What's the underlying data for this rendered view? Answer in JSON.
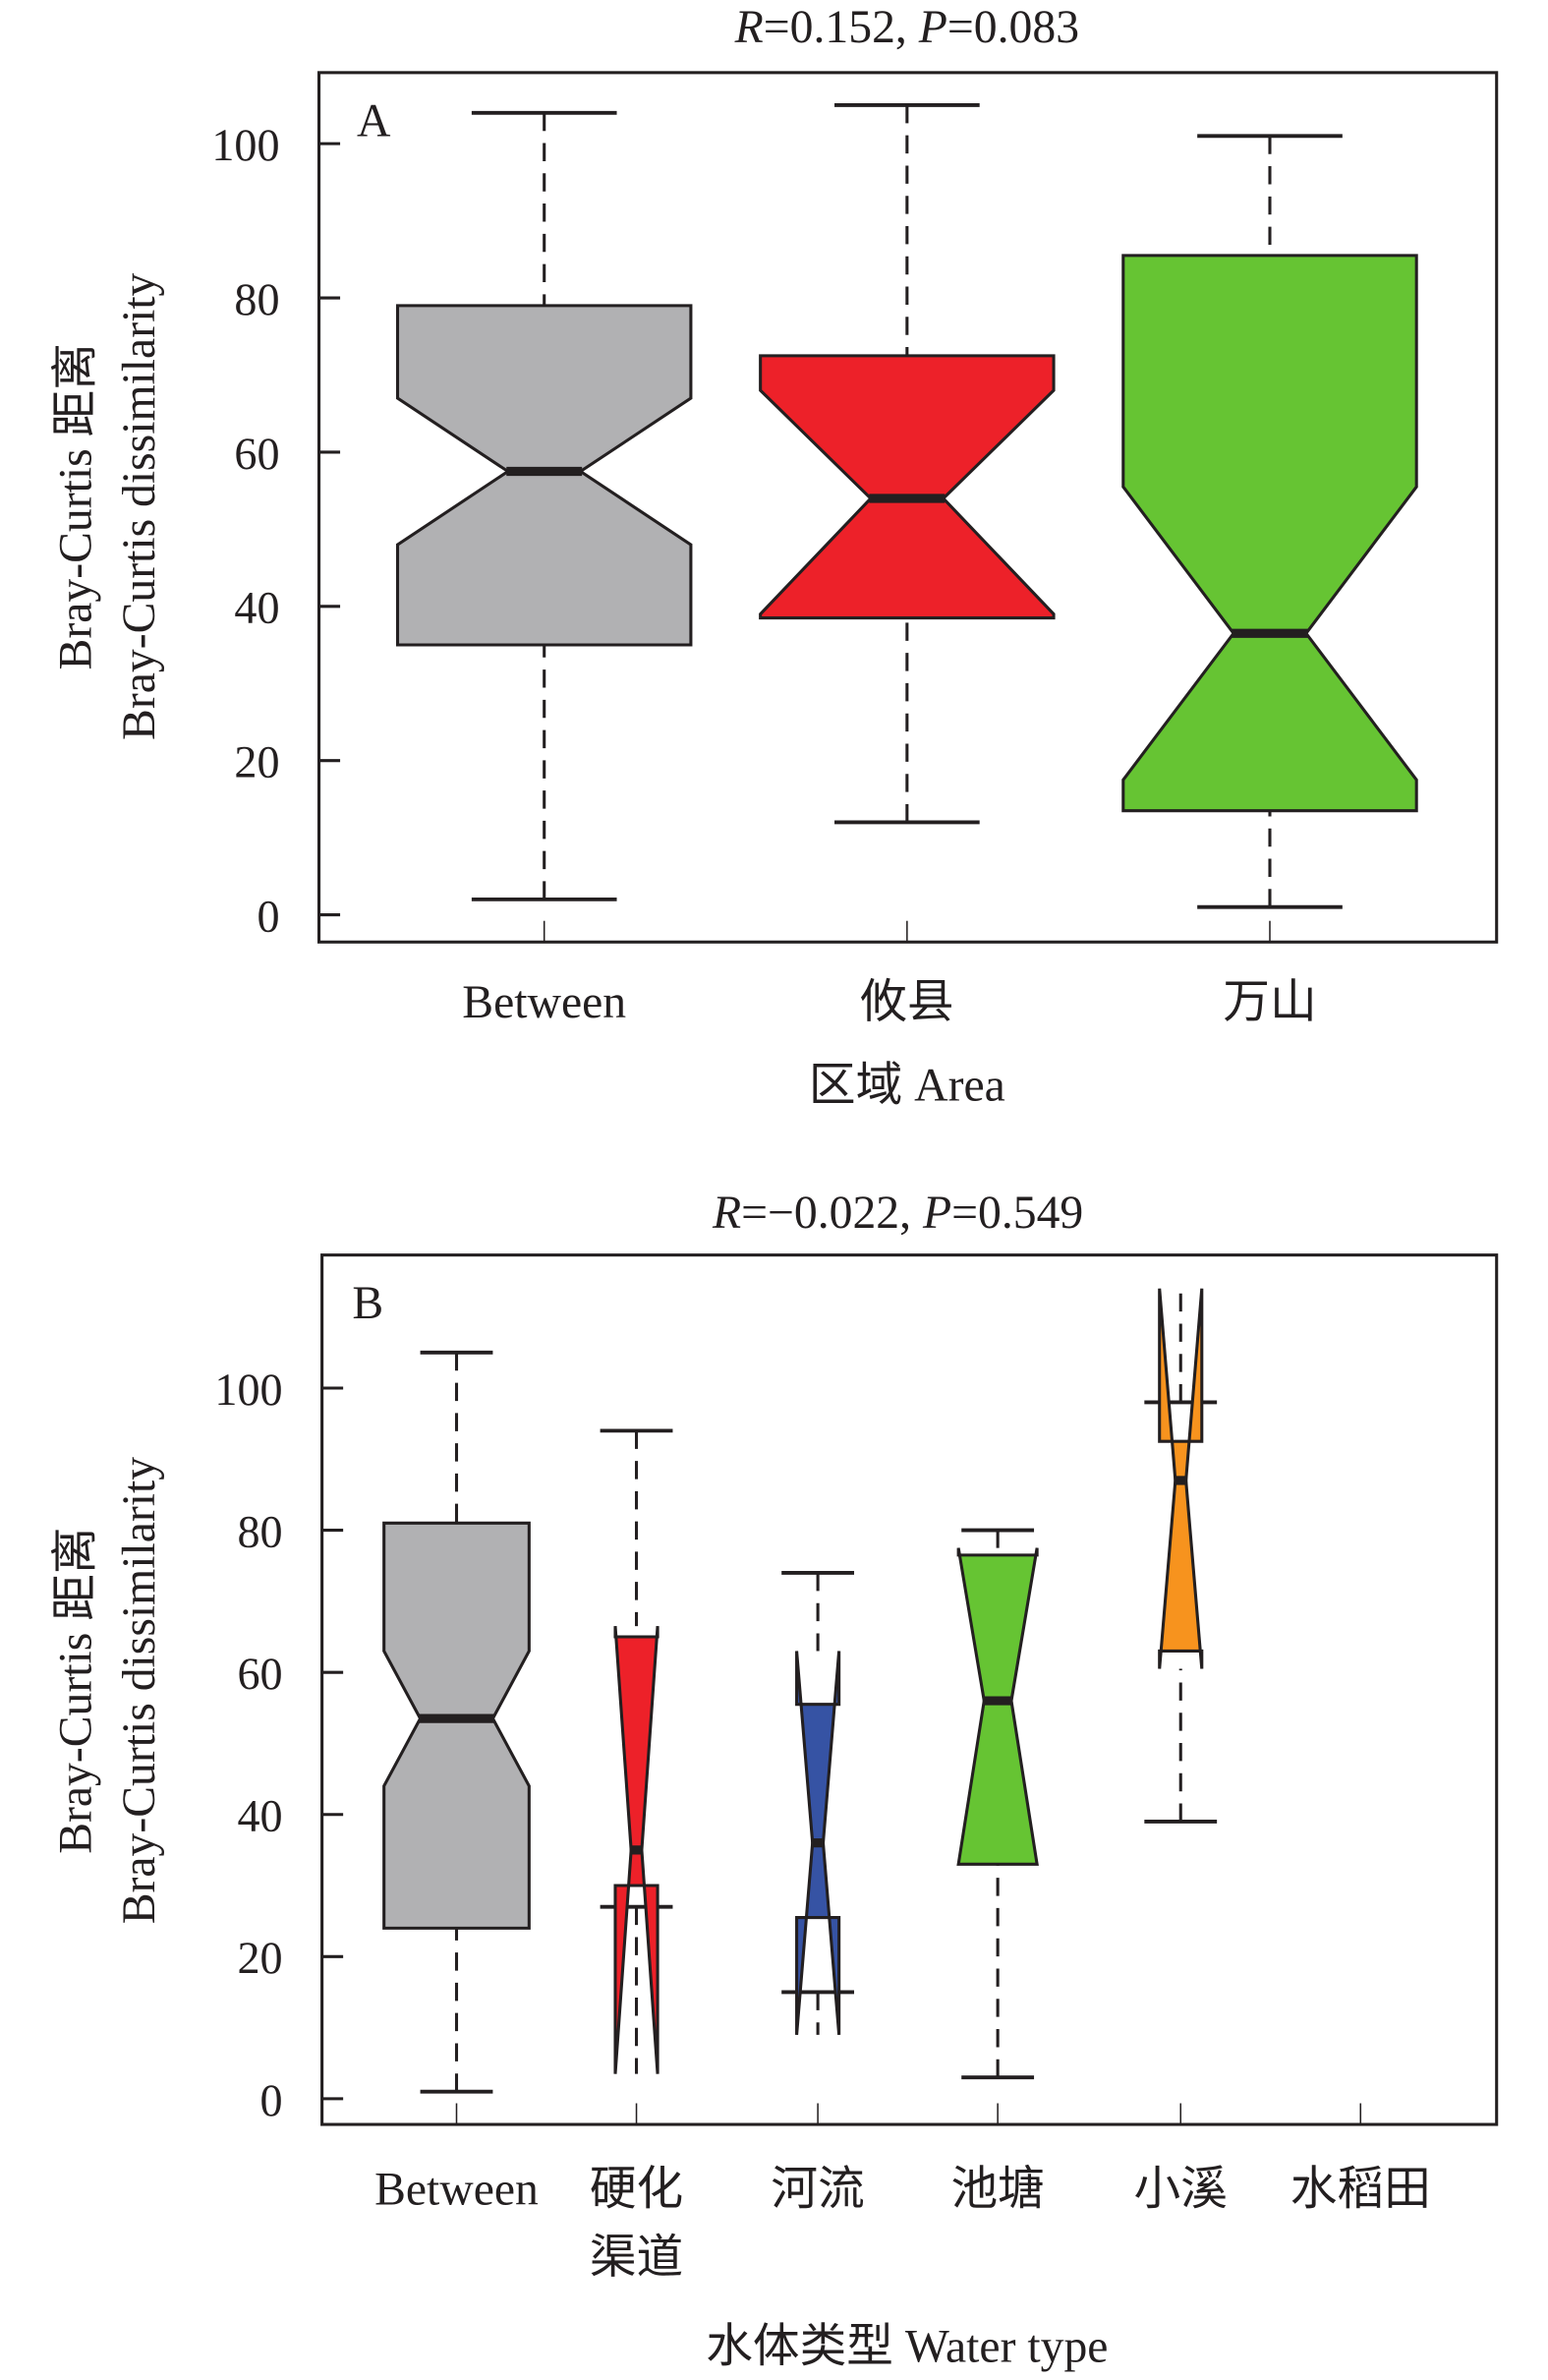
{
  "chart_data": [
    {
      "type": "boxplot",
      "panel_label": "A",
      "title_parts": [
        "R",
        "=0.152, ",
        "P",
        "=0.083"
      ],
      "xlabel": "区域 Area",
      "ylabel_lines": [
        "Bray-Curtis 距离",
        "Bray-Curtis dissimilarity"
      ],
      "ylim": [
        -3,
        108
      ],
      "yticks": [
        0,
        20,
        40,
        60,
        80,
        100
      ],
      "categories": [
        [
          "Between"
        ],
        [
          "攸县"
        ],
        [
          "万山"
        ]
      ],
      "boxes": [
        {
          "name": "Between",
          "color": "#b1b1b3",
          "whisker_low": 2,
          "q1": 35,
          "notch_low": 48,
          "median": 57.5,
          "notch_high": 67,
          "q3": 79,
          "whisker_high": 104
        },
        {
          "name": "攸县",
          "color": "#ed2129",
          "whisker_low": 12,
          "q1": 38.5,
          "notch_low": 39,
          "median": 54,
          "notch_high": 68,
          "q3": 72.5,
          "whisker_high": 105
        },
        {
          "name": "万山",
          "color": "#66c433",
          "whisker_low": 1,
          "q1": 13.5,
          "notch_low": 17.5,
          "median": 36.5,
          "notch_high": 55.5,
          "q3": 85.5,
          "whisker_high": 101
        }
      ]
    },
    {
      "type": "boxplot",
      "panel_label": "B",
      "title_parts": [
        "R",
        "=−0.022, ",
        "P",
        "=0.549"
      ],
      "xlabel": "水体类型 Water type",
      "ylabel_lines": [
        "Bray-Curtis 距离",
        "Bray-Curtis dissimilarity"
      ],
      "ylim": [
        -3.5,
        119
      ],
      "yticks": [
        0,
        20,
        40,
        60,
        80,
        100
      ],
      "categories": [
        [
          "Between"
        ],
        [
          "硬化",
          "渠道"
        ],
        [
          "河流"
        ],
        [
          "池塘"
        ],
        [
          "小溪"
        ],
        [
          "水稻田"
        ]
      ],
      "boxes": [
        {
          "name": "Between",
          "color": "#b1b1b3",
          "whisker_low": 1,
          "q1": 24,
          "notch_low": 44,
          "median": 53.5,
          "notch_high": 63,
          "q3": 81,
          "whisker_high": 105
        },
        {
          "name": "硬化渠道",
          "color": "#ed2129",
          "whisker_low": 27,
          "q1": 30,
          "notch_low": 3.5,
          "median": 35,
          "notch_high": 66.5,
          "q3": 65,
          "whisker_high": 94
        },
        {
          "name": "河流",
          "color": "#3653a4",
          "whisker_low": 15,
          "q1": 25.5,
          "notch_low": 9,
          "median": 36,
          "notch_high": 63,
          "q3": 55.5,
          "whisker_high": 74
        },
        {
          "name": "池塘",
          "color": "#66c433",
          "whisker_low": 3,
          "q1": 33,
          "notch_low": 33,
          "median": 56,
          "notch_high": 77.5,
          "q3": 76.5,
          "whisker_high": 80
        },
        {
          "name": "小溪",
          "color": "#f7931e",
          "whisker_low": 39,
          "q1": 63,
          "notch_low": 60.5,
          "median": 87,
          "notch_high": 114,
          "q3": 92.5,
          "whisker_high": 98
        },
        {
          "name": "水稻田",
          "color": "#ffffff",
          "whisker_low": null,
          "q1": null,
          "notch_low": null,
          "median": null,
          "notch_high": null,
          "q3": null,
          "whisker_high": null
        }
      ]
    }
  ]
}
